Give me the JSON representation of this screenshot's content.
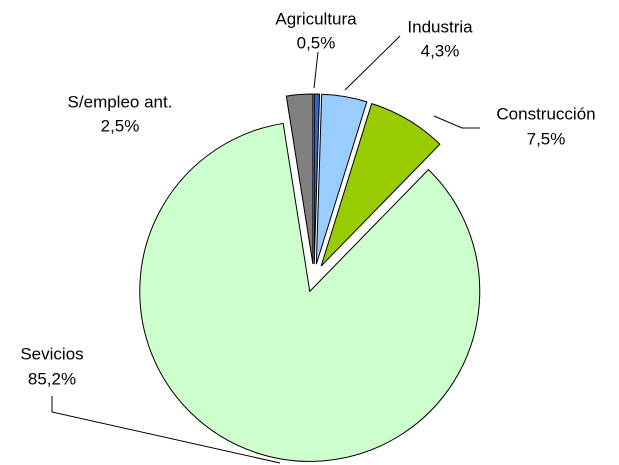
{
  "chart_data": {
    "type": "pie",
    "categories": [
      "Agricultura",
      "Industria",
      "Construcción",
      "Sevicios",
      "S/empleo ant."
    ],
    "values": [
      0.5,
      4.3,
      7.5,
      85.2,
      2.5
    ],
    "value_labels": [
      "0,5%",
      "4,3%",
      "7,5%",
      "85,2%",
      "2,5%"
    ],
    "colors": [
      "#3366cc",
      "#99ccff",
      "#99cc00",
      "#ccffcc",
      "#808080"
    ]
  }
}
